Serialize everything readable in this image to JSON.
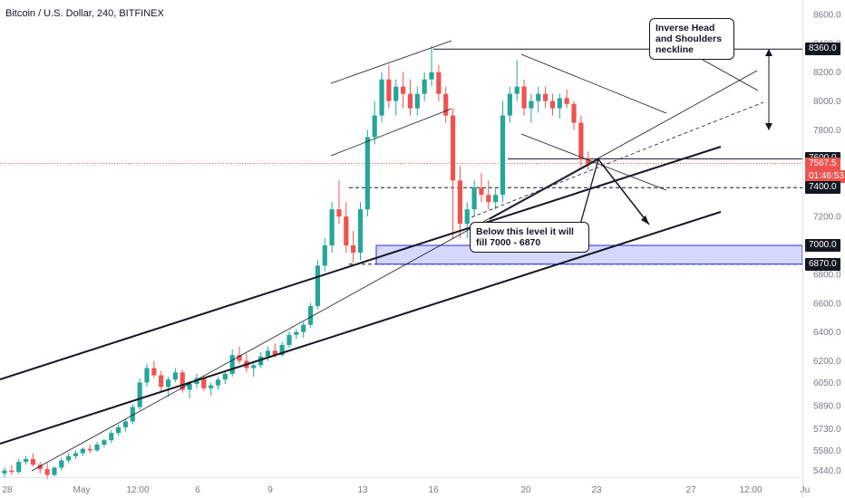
{
  "header": {
    "title": "Bitcoin / U.S. Dollar, 240, BITFINEX"
  },
  "colors": {
    "up": "#26a69a",
    "down": "#ef5350",
    "zone": "#b5b8ff",
    "zone_border": "#2a2ed6",
    "price_line": "#ef5350",
    "text": "#131722",
    "axis_text": "#787b86"
  },
  "annotations": {
    "neckline_label": "Inverse Head and Shoulders neckline",
    "fill_label": "Below this level it will fill 7000 - 6870"
  },
  "price_tags": [
    {
      "label": "8360.0",
      "value": 8360,
      "style": "black"
    },
    {
      "label": "7600.0",
      "value": 7600,
      "style": "black"
    },
    {
      "label": "7567.5",
      "value": 7567.5,
      "style": "red"
    },
    {
      "label": "01:46:53",
      "value": 7480,
      "style": "red"
    },
    {
      "label": "7400.0",
      "value": 7400,
      "style": "black"
    },
    {
      "label": "7000.0",
      "value": 7000,
      "style": "black"
    },
    {
      "label": "6870.0",
      "value": 6870,
      "style": "black"
    }
  ],
  "chart_data": {
    "type": "candlestick",
    "title": "Bitcoin / U.S. Dollar, 240, BITFINEX",
    "y_ticks": [
      8600,
      8400,
      8200,
      8000,
      7800,
      7600,
      7400,
      7200,
      7000,
      6800,
      6600,
      6400,
      6200,
      6050,
      5890,
      5730,
      5580,
      5440
    ],
    "x_ticks": [
      "28",
      "May",
      "12:00",
      "6",
      "9",
      "13",
      "16",
      "20",
      "23",
      "27",
      "12:00",
      "Ju"
    ],
    "ylim": [
      5300,
      8650
    ],
    "series": [
      {
        "name": "candles",
        "values": [
          [
            5420,
            5460,
            5390,
            5440
          ],
          [
            5440,
            5480,
            5410,
            5430
          ],
          [
            5430,
            5520,
            5420,
            5500
          ],
          [
            5500,
            5540,
            5480,
            5520
          ],
          [
            5520,
            5560,
            5470,
            5480
          ],
          [
            5480,
            5500,
            5420,
            5450
          ],
          [
            5450,
            5490,
            5380,
            5410
          ],
          [
            5410,
            5470,
            5400,
            5460
          ],
          [
            5460,
            5530,
            5440,
            5510
          ],
          [
            5510,
            5560,
            5490,
            5540
          ],
          [
            5540,
            5580,
            5520,
            5560
          ],
          [
            5560,
            5600,
            5540,
            5590
          ],
          [
            5590,
            5620,
            5560,
            5580
          ],
          [
            5580,
            5640,
            5570,
            5620
          ],
          [
            5620,
            5660,
            5600,
            5650
          ],
          [
            5650,
            5720,
            5630,
            5700
          ],
          [
            5700,
            5760,
            5680,
            5740
          ],
          [
            5740,
            5800,
            5710,
            5780
          ],
          [
            5780,
            5900,
            5760,
            5880
          ],
          [
            5880,
            6080,
            5860,
            6050
          ],
          [
            6050,
            6180,
            6020,
            6150
          ],
          [
            6150,
            6200,
            6080,
            6100
          ],
          [
            6100,
            6130,
            5980,
            6020
          ],
          [
            6020,
            6090,
            5950,
            6070
          ],
          [
            6070,
            6150,
            6050,
            6120
          ],
          [
            6120,
            6140,
            5980,
            6000
          ],
          [
            6000,
            6060,
            5940,
            6040
          ],
          [
            6040,
            6110,
            6010,
            6080
          ],
          [
            6080,
            6100,
            5990,
            6010
          ],
          [
            6010,
            6050,
            5960,
            6030
          ],
          [
            6030,
            6090,
            6000,
            6070
          ],
          [
            6070,
            6130,
            6040,
            6110
          ],
          [
            6110,
            6280,
            6090,
            6240
          ],
          [
            6240,
            6300,
            6180,
            6200
          ],
          [
            6200,
            6250,
            6120,
            6150
          ],
          [
            6150,
            6200,
            6090,
            6170
          ],
          [
            6170,
            6260,
            6150,
            6230
          ],
          [
            6230,
            6300,
            6200,
            6270
          ],
          [
            6270,
            6320,
            6220,
            6240
          ],
          [
            6240,
            6330,
            6230,
            6310
          ],
          [
            6310,
            6400,
            6290,
            6380
          ],
          [
            6380,
            6420,
            6350,
            6400
          ],
          [
            6400,
            6470,
            6360,
            6450
          ],
          [
            6450,
            6600,
            6430,
            6580
          ],
          [
            6580,
            6900,
            6560,
            6860
          ],
          [
            6860,
            7050,
            6820,
            7000
          ],
          [
            7000,
            7300,
            6950,
            7250
          ],
          [
            7250,
            7450,
            7150,
            7200
          ],
          [
            7200,
            7300,
            6950,
            7000
          ],
          [
            7000,
            7100,
            6880,
            6950
          ],
          [
            6950,
            7300,
            6900,
            7250
          ],
          [
            7250,
            7800,
            7200,
            7750
          ],
          [
            7750,
            8000,
            7700,
            7900
          ],
          [
            7900,
            8200,
            7850,
            8150
          ],
          [
            8150,
            8250,
            7950,
            8000
          ],
          [
            8000,
            8150,
            7900,
            8100
          ],
          [
            8100,
            8200,
            7950,
            8050
          ],
          [
            8050,
            8150,
            7900,
            7950
          ],
          [
            7950,
            8100,
            7900,
            8050
          ],
          [
            8050,
            8200,
            8000,
            8150
          ],
          [
            8150,
            8380,
            8100,
            8200
          ],
          [
            8200,
            8250,
            8000,
            8050
          ],
          [
            8050,
            8100,
            7850,
            7900
          ],
          [
            7900,
            7950,
            7050,
            7450
          ],
          [
            7450,
            7550,
            7050,
            7150
          ],
          [
            7150,
            7300,
            7050,
            7250
          ],
          [
            7250,
            7450,
            7200,
            7400
          ],
          [
            7400,
            7500,
            7300,
            7350
          ],
          [
            7350,
            7450,
            7250,
            7300
          ],
          [
            7300,
            7400,
            7250,
            7350
          ],
          [
            7350,
            8000,
            7300,
            7900
          ],
          [
            7900,
            8100,
            7850,
            8050
          ],
          [
            8050,
            8280,
            8000,
            8100
          ],
          [
            8100,
            8150,
            7900,
            7950
          ],
          [
            7950,
            8050,
            7850,
            8000
          ],
          [
            8000,
            8100,
            7920,
            8050
          ],
          [
            8050,
            8100,
            7950,
            8000
          ],
          [
            8000,
            8050,
            7900,
            7950
          ],
          [
            7950,
            8050,
            7880,
            8020
          ],
          [
            8020,
            8080,
            7950,
            7980
          ],
          [
            7980,
            8000,
            7800,
            7850
          ],
          [
            7850,
            7900,
            7550,
            7600
          ],
          [
            7600,
            7650,
            7520,
            7567
          ]
        ]
      }
    ],
    "levels": [
      8360,
      7600,
      7567.5,
      7400,
      7000,
      6870
    ],
    "zone": [
      6870,
      7000
    ],
    "grid": false,
    "legend": "none"
  }
}
